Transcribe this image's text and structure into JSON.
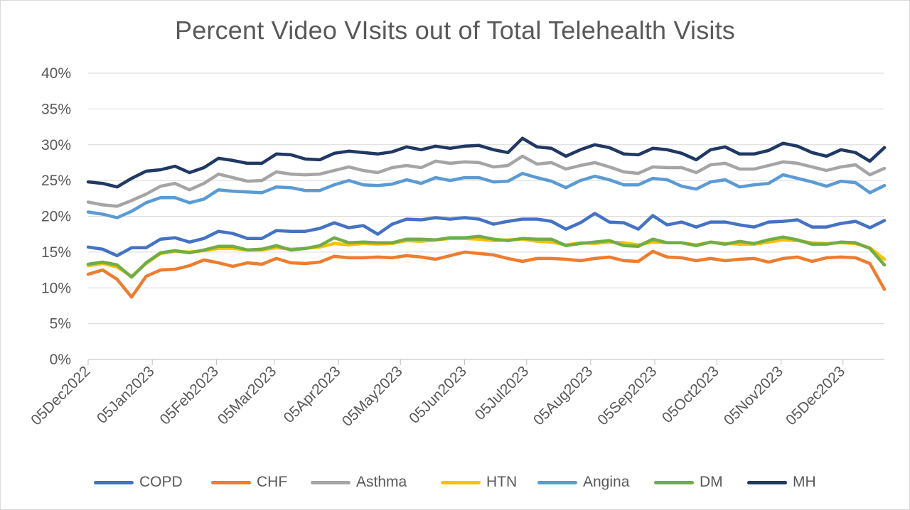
{
  "chart_data": {
    "type": "line",
    "title": "Percent Video VIsits out of Total Telehealth Visits",
    "xlabel": "",
    "ylabel": "",
    "ylim": [
      0,
      40
    ],
    "y_ticks": [
      "0%",
      "5%",
      "10%",
      "15%",
      "20%",
      "25%",
      "30%",
      "35%",
      "40%"
    ],
    "x_tick_labels": [
      "05Dec2022",
      "05Jan2023",
      "05Feb2023",
      "05Mar2023",
      "05Apr2023",
      "05May2023",
      "05Jun2023",
      "05Jul2023",
      "05Aug2023",
      "05Sep2023",
      "05Oct2023",
      "05Nov2023",
      "05Dec2023"
    ],
    "x_tick_weeks": [
      0,
      4.43,
      8.86,
      12.86,
      17.29,
      21.57,
      26,
      30.29,
      34.71,
      39.14,
      43.43,
      47.86,
      52.14
    ],
    "x_start": "05Dec2022",
    "x_step_days": 7,
    "grid": true,
    "legend_position": "bottom",
    "series": [
      {
        "name": "COPD",
        "color": "#4472C4",
        "values": [
          15.7,
          15.4,
          14.5,
          15.6,
          15.6,
          16.8,
          17.0,
          16.4,
          16.9,
          17.9,
          17.6,
          16.9,
          16.9,
          18.0,
          17.9,
          17.9,
          18.3,
          19.1,
          18.4,
          18.7,
          17.5,
          18.9,
          19.6,
          19.5,
          19.8,
          19.6,
          19.8,
          19.6,
          18.9,
          19.3,
          19.6,
          19.6,
          19.3,
          18.2,
          19.1,
          20.4,
          19.2,
          19.1,
          18.2,
          20.1,
          18.8,
          19.2,
          18.5,
          19.2,
          19.2,
          18.8,
          18.5,
          19.2,
          19.3,
          19.5,
          18.5,
          18.5,
          19.0,
          19.3,
          18.4,
          19.4
        ]
      },
      {
        "name": "CHF",
        "color": "#ED7D31",
        "values": [
          11.9,
          12.5,
          11.2,
          8.7,
          11.6,
          12.5,
          12.6,
          13.1,
          13.9,
          13.5,
          13.0,
          13.5,
          13.3,
          14.1,
          13.5,
          13.4,
          13.6,
          14.4,
          14.2,
          14.2,
          14.3,
          14.2,
          14.5,
          14.3,
          14.0,
          14.5,
          15.0,
          14.8,
          14.6,
          14.1,
          13.7,
          14.1,
          14.1,
          14.0,
          13.8,
          14.1,
          14.3,
          13.8,
          13.7,
          15.1,
          14.3,
          14.2,
          13.8,
          14.1,
          13.8,
          14.0,
          14.1,
          13.6,
          14.1,
          14.3,
          13.7,
          14.2,
          14.3,
          14.2,
          13.4,
          9.8
        ]
      },
      {
        "name": "Asthma",
        "color": "#A5A5A5",
        "values": [
          22.0,
          21.6,
          21.4,
          22.2,
          23.1,
          24.2,
          24.6,
          23.7,
          24.6,
          25.9,
          25.4,
          24.9,
          25.0,
          26.2,
          25.9,
          25.8,
          25.9,
          26.4,
          26.9,
          26.4,
          26.1,
          26.8,
          27.1,
          26.8,
          27.7,
          27.4,
          27.6,
          27.5,
          26.9,
          27.1,
          28.4,
          27.3,
          27.5,
          26.6,
          27.1,
          27.5,
          26.9,
          26.2,
          26.0,
          26.9,
          26.8,
          26.8,
          26.1,
          27.2,
          27.4,
          26.6,
          26.6,
          27.1,
          27.6,
          27.4,
          26.9,
          26.4,
          26.9,
          27.2,
          25.8,
          26.7
        ]
      },
      {
        "name": "HTN",
        "color": "#FFC000",
        "values": [
          13.1,
          13.4,
          12.9,
          11.6,
          13.4,
          14.8,
          15.1,
          15.0,
          15.2,
          15.5,
          15.5,
          15.3,
          15.3,
          15.6,
          15.4,
          15.5,
          15.7,
          16.2,
          16.0,
          16.2,
          16.1,
          16.2,
          16.6,
          16.5,
          16.7,
          16.9,
          16.9,
          16.8,
          16.6,
          16.7,
          16.8,
          16.5,
          16.4,
          16.0,
          16.3,
          16.2,
          16.4,
          16.3,
          16.0,
          16.4,
          16.3,
          16.3,
          16.0,
          16.4,
          16.2,
          16.1,
          16.1,
          16.4,
          16.7,
          16.6,
          16.3,
          16.2,
          16.3,
          16.2,
          15.6,
          14.0
        ]
      },
      {
        "name": "Angina",
        "color": "#5B9BD5",
        "values": [
          20.6,
          20.3,
          19.8,
          20.7,
          21.9,
          22.6,
          22.6,
          21.9,
          22.4,
          23.7,
          23.5,
          23.4,
          23.3,
          24.1,
          24.0,
          23.6,
          23.6,
          24.4,
          25.0,
          24.4,
          24.3,
          24.5,
          25.1,
          24.6,
          25.4,
          25.0,
          25.4,
          25.4,
          24.8,
          24.9,
          26.0,
          25.4,
          24.9,
          24.0,
          25.0,
          25.6,
          25.1,
          24.4,
          24.4,
          25.3,
          25.1,
          24.2,
          23.8,
          24.8,
          25.1,
          24.1,
          24.4,
          24.6,
          25.8,
          25.3,
          24.8,
          24.2,
          24.9,
          24.7,
          23.3,
          24.3
        ]
      },
      {
        "name": "DM",
        "color": "#70AD47",
        "values": [
          13.3,
          13.6,
          13.2,
          11.5,
          13.5,
          14.9,
          15.2,
          14.9,
          15.3,
          15.8,
          15.8,
          15.3,
          15.4,
          15.9,
          15.3,
          15.5,
          15.9,
          17.0,
          16.3,
          16.4,
          16.3,
          16.3,
          16.8,
          16.8,
          16.7,
          17.0,
          17.0,
          17.2,
          16.8,
          16.6,
          16.9,
          16.8,
          16.8,
          15.9,
          16.2,
          16.4,
          16.6,
          15.9,
          15.8,
          16.8,
          16.3,
          16.3,
          15.9,
          16.4,
          16.1,
          16.5,
          16.2,
          16.7,
          17.1,
          16.7,
          16.1,
          16.1,
          16.4,
          16.3,
          15.5,
          13.2
        ]
      },
      {
        "name": "MH",
        "color": "#203864",
        "values": [
          24.8,
          24.6,
          24.1,
          25.3,
          26.3,
          26.5,
          27.0,
          26.1,
          26.8,
          28.1,
          27.8,
          27.4,
          27.4,
          28.7,
          28.6,
          28.0,
          27.9,
          28.8,
          29.1,
          28.9,
          28.7,
          29.0,
          29.7,
          29.3,
          29.8,
          29.5,
          29.8,
          29.9,
          29.3,
          28.9,
          30.9,
          29.7,
          29.5,
          28.4,
          29.3,
          30.0,
          29.6,
          28.7,
          28.6,
          29.5,
          29.3,
          28.8,
          27.9,
          29.3,
          29.7,
          28.7,
          28.7,
          29.2,
          30.2,
          29.8,
          28.9,
          28.4,
          29.3,
          28.9,
          27.7,
          29.6
        ]
      }
    ]
  }
}
